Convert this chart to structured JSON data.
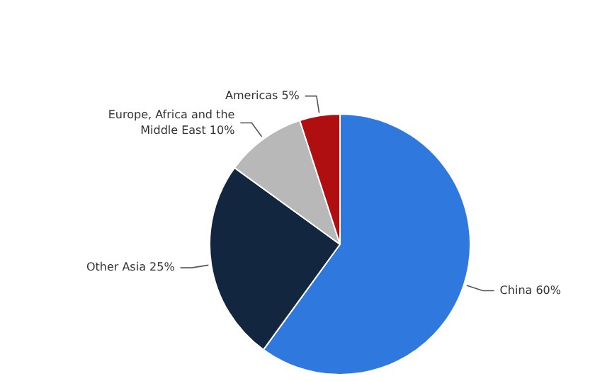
{
  "chart_data": {
    "type": "pie",
    "categories": [
      "China",
      "Other Asia",
      "Europe, Africa and the Middle East",
      "Americas"
    ],
    "values": [
      60,
      25,
      10,
      5
    ],
    "colors": [
      "#2f78dd",
      "#12263f",
      "#b8b8b8",
      "#b00f12"
    ],
    "value_labels": [
      "60%",
      "25%",
      "10%",
      "5%"
    ],
    "legend": false
  }
}
